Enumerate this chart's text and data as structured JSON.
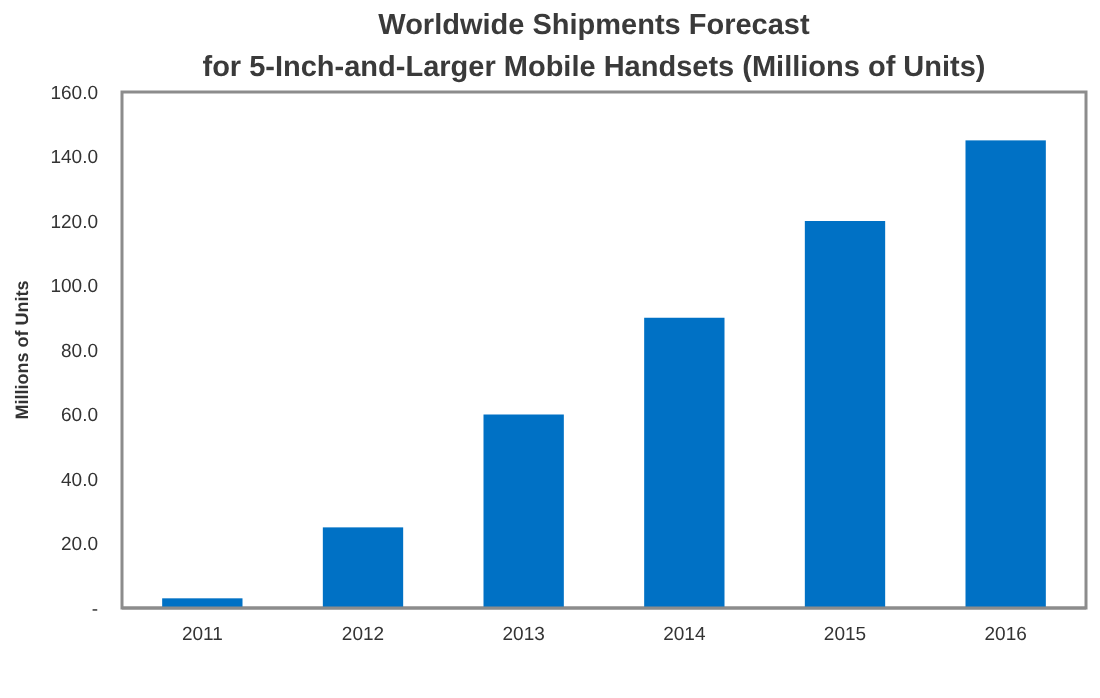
{
  "chart_data": {
    "type": "bar",
    "title": "Worldwide Shipments Forecast\nfor 5-Inch-and-Larger Mobile Handsets (Millions of Units)",
    "ylabel": "Millions of Units",
    "categories": [
      "2011",
      "2012",
      "2013",
      "2014",
      "2015",
      "2016"
    ],
    "values": [
      3,
      25,
      60,
      90,
      120,
      145
    ],
    "color": "#0071c5",
    "ylim": [
      0,
      160
    ],
    "yticks": [
      {
        "value": 0,
        "label": "-"
      },
      {
        "value": 20,
        "label": "20.0"
      },
      {
        "value": 40,
        "label": "40.0"
      },
      {
        "value": 60,
        "label": "60.0"
      },
      {
        "value": 80,
        "label": "80.0"
      },
      {
        "value": 100,
        "label": "100.0"
      },
      {
        "value": 120,
        "label": "120.0"
      },
      {
        "value": 140,
        "label": "140.0"
      },
      {
        "value": 160,
        "label": "160.0"
      }
    ],
    "grid": false
  }
}
